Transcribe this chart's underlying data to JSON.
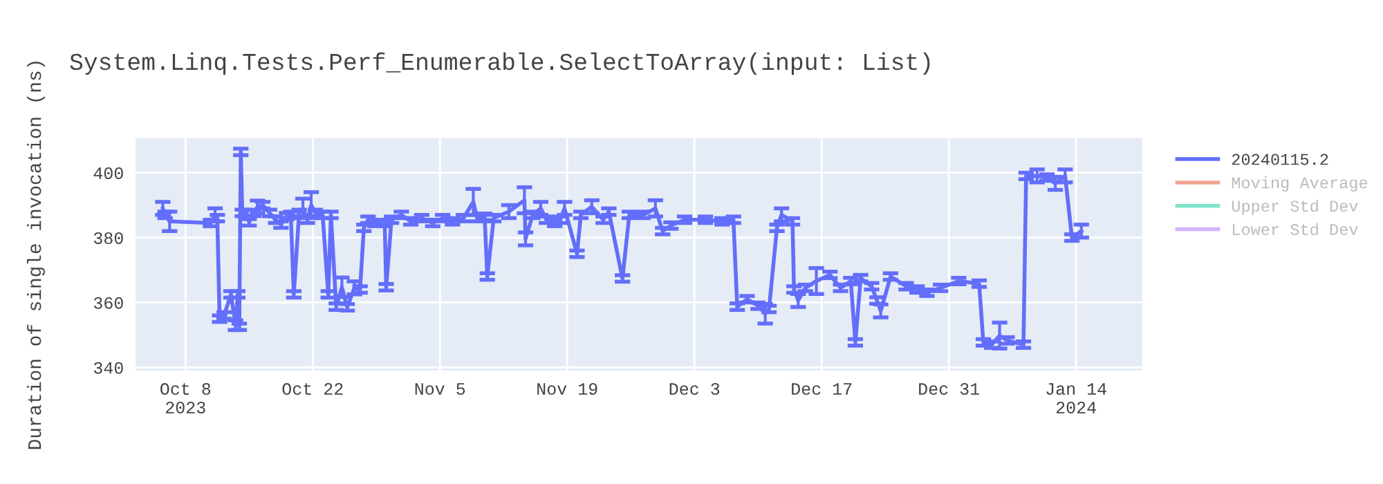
{
  "chart_data": {
    "type": "line",
    "title": "System.Linq.Tests.Perf_Enumerable.SelectToArray(input: List)",
    "ylabel": "Duration of single invocation (ns)",
    "xlim": [
      "2023-10-02T12:00",
      "2024-01-21T07:00"
    ],
    "xticks": [
      {
        "value": "2023-10-08",
        "label": "Oct 8\n2023"
      },
      {
        "value": "2023-10-22",
        "label": "Oct 22"
      },
      {
        "value": "2023-11-05",
        "label": "Nov 5"
      },
      {
        "value": "2023-11-19",
        "label": "Nov 19"
      },
      {
        "value": "2023-12-03",
        "label": "Dec 3"
      },
      {
        "value": "2023-12-17",
        "label": "Dec 17"
      },
      {
        "value": "2023-12-31",
        "label": "Dec 31"
      },
      {
        "value": "2024-01-14",
        "label": "Jan 14\n2024"
      }
    ],
    "ylim": [
      339,
      410.6
    ],
    "yticks": [
      340,
      360,
      380,
      400
    ],
    "grid": true,
    "legend": "right",
    "series": [
      {
        "name": "20240115.2",
        "color": "#636efa",
        "x": [
          "2023-10-05T12:00",
          "2023-10-05T18:00",
          "2023-10-06T06:00",
          "2023-10-10T18:00",
          "2023-10-11T06:00",
          "2023-10-11T12:00",
          "2023-10-11T18:00",
          "2023-10-12T06:00",
          "2023-10-13T00:00",
          "2023-10-13T12:00",
          "2023-10-13T18:00",
          "2023-10-13T22:00",
          "2023-10-14T02:00",
          "2023-10-14T06:00",
          "2023-10-14T18:00",
          "2023-10-15T00:00",
          "2023-10-15T12:00",
          "2023-10-15T22:00",
          "2023-10-16T12:00",
          "2023-10-17T06:00",
          "2023-10-17T22:00",
          "2023-10-18T12:00",
          "2023-10-19T03:00",
          "2023-10-19T14:00",
          "2023-10-19T22:00",
          "2023-10-20T12:00",
          "2023-10-20T22:00",
          "2023-10-21T10:00",
          "2023-10-21T20:00",
          "2023-10-22T07:00",
          "2023-10-23T02:00",
          "2023-10-23T17:00",
          "2023-10-24T00:00",
          "2023-10-24T14:00",
          "2023-10-25T05:00",
          "2023-10-25T19:00",
          "2023-10-26T14:00",
          "2023-10-27T05:00",
          "2023-10-27T15:00",
          "2023-10-28T02:00",
          "2023-10-28T20:00",
          "2023-10-29T22:00",
          "2023-10-30T02:00",
          "2023-10-30T16:00",
          "2023-10-31T18:00",
          "2023-11-01T19:00",
          "2023-11-03T00:00",
          "2023-11-04T05:00",
          "2023-11-05T07:00",
          "2023-11-06T09:00",
          "2023-11-07T14:00",
          "2023-11-08T16:00",
          "2023-11-09T02:00",
          "2023-11-09T22:00",
          "2023-11-10T05:00",
          "2023-11-10T22:00",
          "2023-11-12T14:00",
          "2023-11-14T07:00",
          "2023-11-14T10:00",
          "2023-11-15T05:00",
          "2023-11-16T02:00",
          "2023-11-16T17:00",
          "2023-11-17T15:00",
          "2023-11-18T05:00",
          "2023-11-18T17:00",
          "2023-11-20T02:00",
          "2023-11-20T12:00",
          "2023-11-21T17:00",
          "2023-11-22T23:00",
          "2023-11-23T14:00",
          "2023-11-25T02:00",
          "2023-11-25T20:00",
          "2023-11-27T09:00",
          "2023-11-28T17:00",
          "2023-11-29T12:00",
          "2023-11-30T10:00",
          "2023-12-01T22:00",
          "2023-12-04T05:00",
          "2023-12-06T01:00",
          "2023-12-07T07:00",
          "2023-12-07T17:00",
          "2023-12-08T19:00",
          "2023-12-10T00:00",
          "2023-12-10T19:00",
          "2023-12-11T05:00",
          "2023-12-12T02:00",
          "2023-12-12T14:00",
          "2023-12-13T19:00",
          "2023-12-13T23:00",
          "2023-12-14T10:00",
          "2023-12-15T05:00",
          "2023-12-16T10:00",
          "2023-12-17T22:00",
          "2023-12-19T02:00",
          "2023-12-20T05:00",
          "2023-12-20T17:00",
          "2023-12-21T07:00",
          "2023-12-22T12:00",
          "2023-12-23T02:00",
          "2023-12-23T12:00",
          "2023-12-24T14:00",
          "2023-12-26T07:00",
          "2023-12-27T12:00",
          "2023-12-28T14:00",
          "2023-12-30T02:00",
          "2024-01-01T02:00",
          "2024-01-03T08:00",
          "2024-01-03T19:00",
          "2024-01-04T17:00",
          "2024-01-05T14:00",
          "2024-01-06T10:00",
          "2024-01-08T05:00",
          "2024-01-08T12:00",
          "2024-01-09T17:00",
          "2024-01-10T19:00",
          "2024-01-11T17:00",
          "2024-01-12T19:00",
          "2024-01-13T13:00",
          "2024-01-14T14:00"
        ],
        "values": [
          389,
          387,
          385,
          384.5,
          387,
          386,
          355,
          356,
          362.5,
          353,
          362.5,
          352.5,
          406.4,
          387.6,
          387.5,
          384.7,
          387.6,
          389.4,
          390,
          387.6,
          385.5,
          384,
          386.6,
          387,
          362.5,
          387.6,
          389,
          385.5,
          390,
          387.6,
          387,
          362.5,
          387,
          358.7,
          364.7,
          358.5,
          364.5,
          364,
          383,
          385.5,
          384.5,
          384.5,
          364.7,
          385.5,
          387,
          385,
          386,
          384.5,
          386,
          385,
          386,
          391,
          386,
          386.4,
          368,
          386,
          388,
          391.5,
          379.6,
          387,
          389,
          385.5,
          384.5,
          385.5,
          389,
          375,
          387,
          389.5,
          385.5,
          388,
          367.4,
          387,
          387,
          389,
          382,
          383.7,
          385.5,
          385.5,
          385,
          385.5,
          358.7,
          361,
          359,
          356.5,
          358,
          383,
          387,
          385,
          364,
          360.6,
          364.5,
          366.6,
          368.5,
          364.5,
          366.6,
          347.7,
          367.5,
          365,
          360.6,
          357.4,
          368,
          365,
          364,
          363,
          364.5,
          366.6,
          365.8,
          347.7,
          347,
          349.8,
          348.3,
          347,
          399,
          399,
          398.5,
          396.7,
          399,
          380,
          382
        ],
        "errors": [
          2,
          1,
          3,
          1,
          2,
          1,
          1,
          1,
          1,
          1.5,
          1,
          1,
          1,
          1,
          1,
          1,
          1,
          2,
          1,
          1,
          1,
          1,
          1,
          1,
          1,
          1,
          3,
          1,
          4,
          1,
          1,
          1,
          1,
          1,
          3,
          1,
          2,
          1,
          1,
          1,
          1,
          1,
          1,
          1,
          1,
          1,
          1,
          1,
          1,
          1,
          1,
          4,
          1,
          1,
          1,
          1,
          2,
          4,
          2,
          1,
          2,
          1,
          1,
          1,
          2,
          1,
          1,
          2,
          1,
          1,
          1,
          1,
          1,
          2.5,
          1,
          1,
          1,
          1,
          1,
          1,
          1,
          1,
          1,
          3,
          1,
          1,
          2,
          1,
          1,
          2,
          1,
          4,
          1,
          1,
          1,
          1,
          1,
          1,
          1,
          2,
          1,
          1,
          1,
          1,
          1,
          1,
          1,
          1,
          1,
          4,
          1,
          1,
          1,
          2,
          1,
          2,
          2,
          1,
          2
        ]
      },
      {
        "name": "Moving Average",
        "color": "#f4a493"
      },
      {
        "name": "Upper Std Dev",
        "color": "#7fe5ca"
      },
      {
        "name": "Lower Std Dev",
        "color": "#d5b1fc"
      }
    ]
  }
}
